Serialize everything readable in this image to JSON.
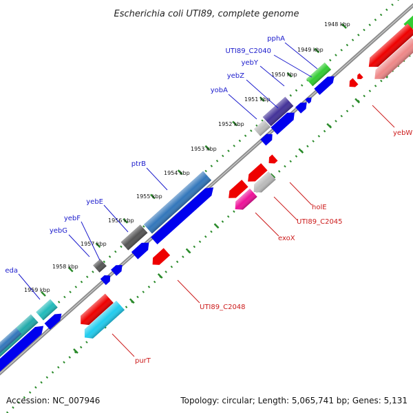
{
  "header": {
    "title": "Escherichia coli UTI89, complete genome"
  },
  "footer": {
    "accession": "Accession: NC_007946",
    "topology": "Topology: circular; Length: 5,065,741 bp; Genes: 5,131"
  },
  "colors": {
    "backbone": "#8c8c8c",
    "tick": "#2a8a2a",
    "forward_label": "#1a1acc",
    "reverse_label": "#cc1a1a",
    "arrow_blue": "#0000ee",
    "arrow_red": "#ee0000"
  },
  "ruler": {
    "unit": "kbp",
    "labels": [
      {
        "kbp": 1948,
        "text": "1948 kbp"
      },
      {
        "kbp": 1949,
        "text": "1949 kbp"
      },
      {
        "kbp": 1950,
        "text": "1950 kbp"
      },
      {
        "kbp": 1951,
        "text": "1951 kbp"
      },
      {
        "kbp": 1952,
        "text": "1952 kbp"
      },
      {
        "kbp": 1953,
        "text": "1953 kbp"
      },
      {
        "kbp": 1954,
        "text": "1954 kbp"
      },
      {
        "kbp": 1955,
        "text": "1955 kbp"
      },
      {
        "kbp": 1956,
        "text": "1956 kbp"
      },
      {
        "kbp": 1957,
        "text": "1957 kbp"
      },
      {
        "kbp": 1958,
        "text": "1958 kbp"
      },
      {
        "kbp": 1959,
        "text": "1959 kbp"
      }
    ]
  },
  "genes": {
    "forward": [
      {
        "name": "pphA",
        "color": "#33cc33"
      },
      {
        "name": "UTI89_C2040",
        "color": "#0000ee"
      },
      {
        "name": "yebY",
        "color": "#0000ee"
      },
      {
        "name": "yebZ",
        "color": "#0000ee"
      },
      {
        "name": "yobA",
        "color": "#443399"
      },
      {
        "name": "ptrB",
        "color": "#3377bb"
      },
      {
        "name": "yebE",
        "color": "#555555"
      },
      {
        "name": "yebF",
        "color": "#555555"
      },
      {
        "name": "yebG",
        "color": "#555555"
      },
      {
        "name": "eda",
        "color": "#22bbbb"
      }
    ],
    "reverse": [
      {
        "name": "yebW",
        "color": "#ee0000"
      },
      {
        "name": "holE",
        "color": "#ee0000"
      },
      {
        "name": "UTI89_C2045",
        "color": "#bbbbbb"
      },
      {
        "name": "exoX",
        "color": "#ee1199"
      },
      {
        "name": "UTI89_C2048",
        "color": "#ee0000"
      },
      {
        "name": "purT",
        "color": "#22ccee"
      }
    ]
  }
}
